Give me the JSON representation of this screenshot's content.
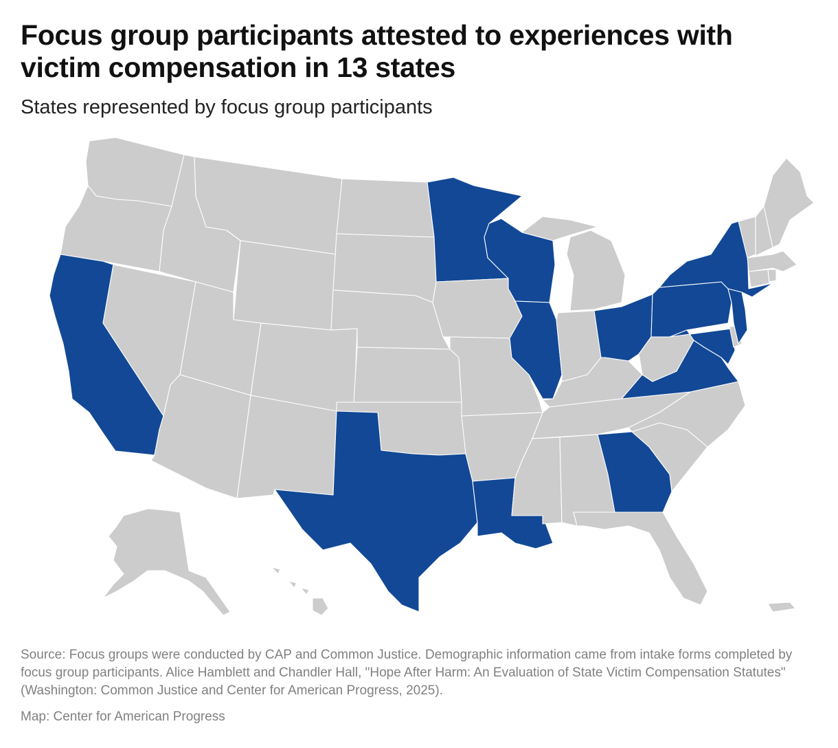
{
  "header": {
    "title": "Focus group participants attested to experiences with victim compensation in 13 states",
    "subtitle": "States represented by focus group participants"
  },
  "colors": {
    "highlight": "#124896",
    "base": "#cccccc",
    "border": "#ffffff"
  },
  "map_data": {
    "type": "choropleth",
    "region": "United States",
    "highlighted_states": [
      "California",
      "Texas",
      "Minnesota",
      "Wisconsin",
      "Illinois",
      "Louisiana",
      "Georgia",
      "Ohio",
      "Virginia",
      "Maryland",
      "Pennsylvania",
      "New York",
      "New Jersey"
    ],
    "highlighted_count": 13
  },
  "footer": {
    "source": "Source: Focus groups were conducted by CAP and Common Justice. Demographic information came from intake forms completed by focus group participants. Alice Hamblett and Chandler Hall, \"Hope After Harm: An Evaluation of State Victim Compensation Statutes\" (Washington: Common Justice and Center for American Progress, 2025).",
    "credit": "Map: Center for American Progress"
  }
}
